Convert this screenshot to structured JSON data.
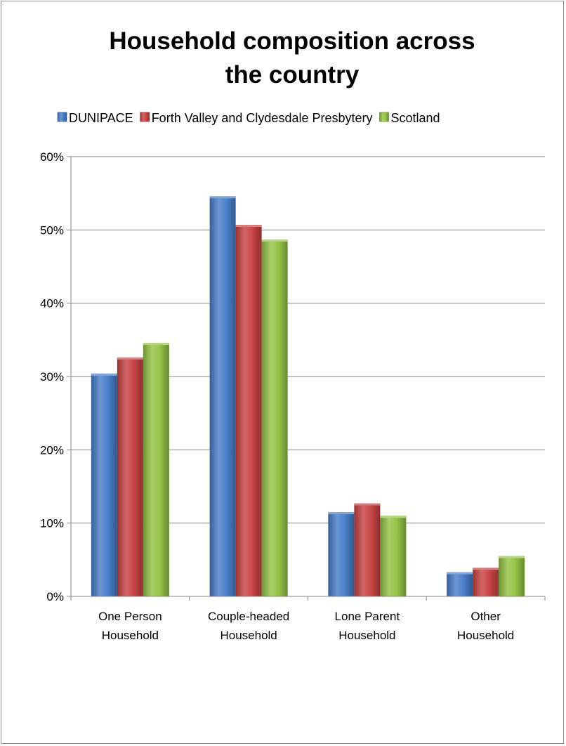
{
  "chart_data": {
    "type": "bar",
    "title_lines": [
      "Household composition across",
      "the country"
    ],
    "xlabel": "",
    "ylabel": "",
    "categories": [
      [
        "One Person",
        "Household"
      ],
      [
        "Couple-headed",
        "Household"
      ],
      [
        "Lone Parent",
        "Household"
      ],
      [
        "Other",
        "Household"
      ]
    ],
    "series": [
      {
        "name": "DUNIPACE",
        "color": "#4a7fcb",
        "values": [
          30.4,
          54.6,
          11.5,
          3.3
        ]
      },
      {
        "name": "Forth Valley and Clydesdale Presbytery",
        "color": "#c94444",
        "values": [
          32.6,
          50.7,
          12.7,
          3.9
        ]
      },
      {
        "name": "Scotland",
        "color": "#95c447",
        "values": [
          34.6,
          48.7,
          11.0,
          5.5
        ]
      }
    ],
    "ylim": [
      0,
      60
    ],
    "yticks": [
      0,
      10,
      20,
      30,
      40,
      50,
      60
    ],
    "ytick_labels": [
      "0%",
      "10%",
      "20%",
      "30%",
      "40%",
      "50%",
      "60%"
    ],
    "grid": true,
    "legend_position": "top"
  }
}
